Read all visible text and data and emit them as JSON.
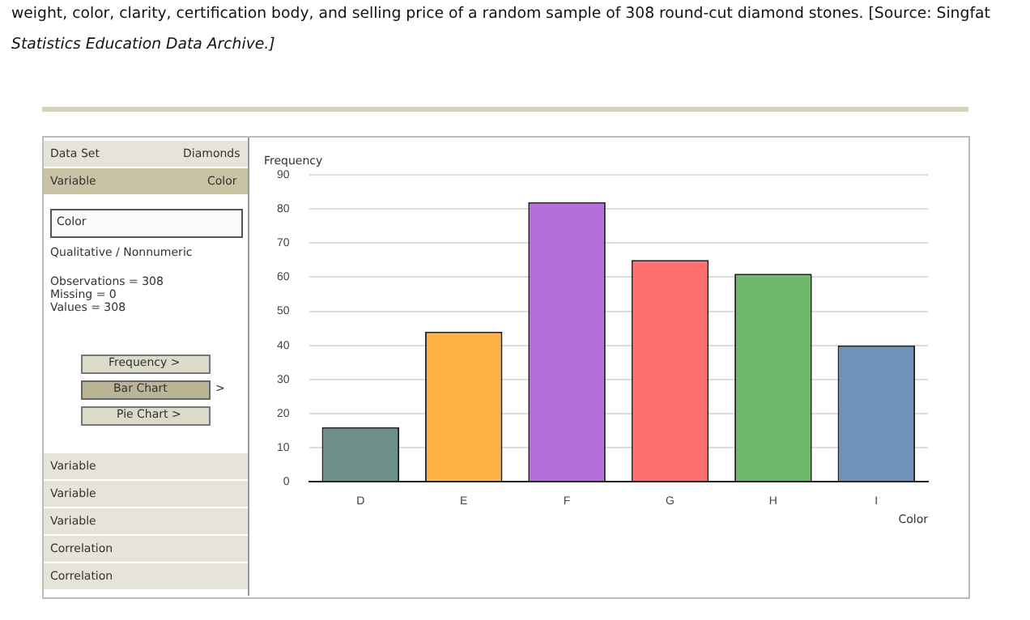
{
  "chart_data": {
    "type": "bar",
    "categories": [
      "D",
      "E",
      "F",
      "G",
      "H",
      "I"
    ],
    "values": [
      16,
      44,
      82,
      65,
      61,
      40
    ],
    "colors": [
      "#6e8f8a",
      "#ffb347",
      "#b56edb",
      "#ff6f6f",
      "#6db76d",
      "#6f93b8"
    ],
    "xlabel": "Color",
    "ylabel": "Frequency",
    "ylim": [
      0,
      90
    ],
    "yticks": [
      0,
      10,
      20,
      30,
      40,
      50,
      60,
      70,
      80,
      90
    ],
    "grid": "y",
    "legend": false,
    "annotations": [
      "weight, color, clarity, certification body, and selling price of a random sample of 308 round-cut diamond stones. [Source: Singfat",
      "Statistics Education Data Archive.]",
      "Data Set",
      "Diamonds",
      "Variable",
      "Color",
      "Color",
      "Qualitative / Nonnumeric",
      "Observations = 308",
      "Missing = 0",
      "Values = 308",
      "Frequency   >",
      "Bar Chart",
      ">",
      "Pie Chart   >",
      "Variable",
      "Variable",
      "Variable",
      "Correlation",
      "Correlation"
    ]
  }
}
